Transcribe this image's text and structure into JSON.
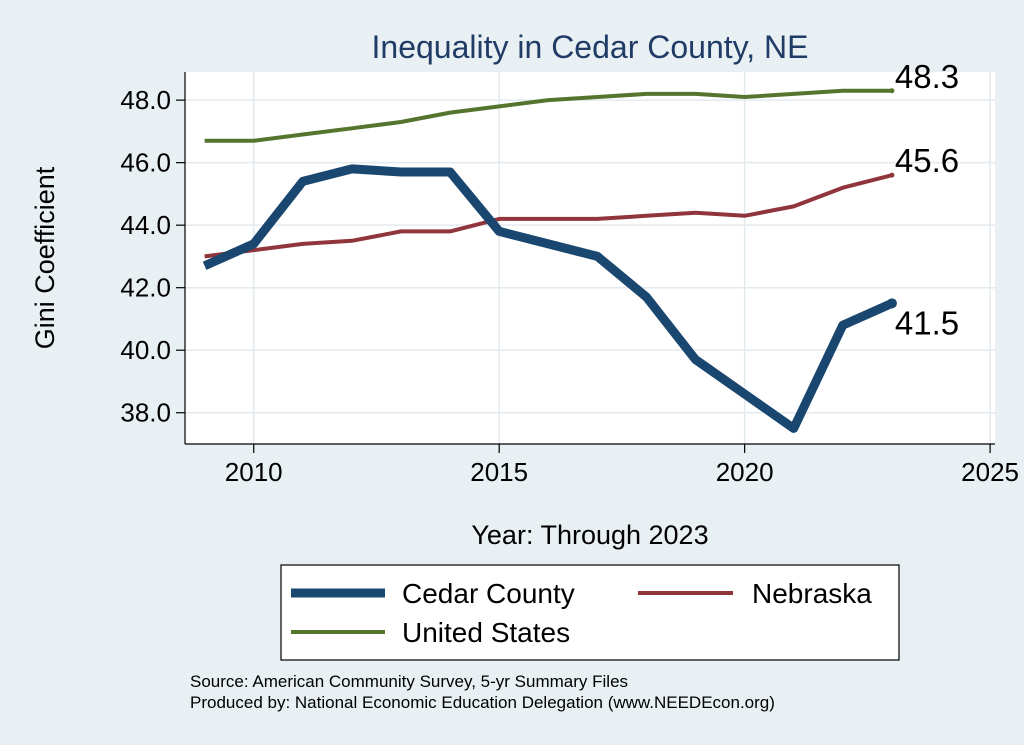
{
  "chart_data": {
    "type": "line",
    "title": "Inequality in Cedar County, NE",
    "xlabel": "Year: Through 2023",
    "ylabel": "Gini Coefficient",
    "xlim": [
      2008.6,
      2025.1
    ],
    "ylim": [
      37.0,
      48.9
    ],
    "x_ticks": [
      2010,
      2015,
      2020,
      2025
    ],
    "x_tick_labels": [
      "2010",
      "2015",
      "2020",
      "2025"
    ],
    "y_ticks": [
      38,
      40,
      42,
      44,
      46,
      48
    ],
    "y_tick_labels": [
      "38.0",
      "40.0",
      "42.0",
      "44.0",
      "46.0",
      "48.0"
    ],
    "grid": true,
    "x": [
      2009,
      2010,
      2011,
      2012,
      2013,
      2014,
      2015,
      2016,
      2017,
      2018,
      2019,
      2020,
      2021,
      2022,
      2023
    ],
    "series": [
      {
        "name": "Cedar County",
        "color": "#1a476f",
        "values": [
          42.7,
          43.4,
          45.4,
          45.8,
          45.7,
          45.7,
          43.8,
          43.4,
          43.0,
          41.7,
          39.7,
          38.6,
          37.5,
          40.8,
          41.5
        ],
        "end_label": "41.5"
      },
      {
        "name": "Nebraska",
        "color": "#90353b",
        "values": [
          43.0,
          43.2,
          43.4,
          43.5,
          43.8,
          43.8,
          44.2,
          44.2,
          44.2,
          44.3,
          44.4,
          44.3,
          44.6,
          45.2,
          45.6
        ],
        "end_label": "45.6"
      },
      {
        "name": "United States",
        "color": "#55752f",
        "values": [
          46.7,
          46.7,
          46.9,
          47.1,
          47.3,
          47.6,
          47.8,
          48.0,
          48.1,
          48.2,
          48.2,
          48.1,
          48.2,
          48.3,
          48.3
        ],
        "end_label": "48.3"
      }
    ],
    "legend": [
      "Cedar County",
      "Nebraska",
      "United States"
    ],
    "legend_position": "bottom"
  },
  "notes": {
    "source": "Source: American Community Survey, 5-yr Summary Files",
    "produced_by": "Produced by: National Economic Education Delegation (www.NEEDEcon.org)"
  }
}
